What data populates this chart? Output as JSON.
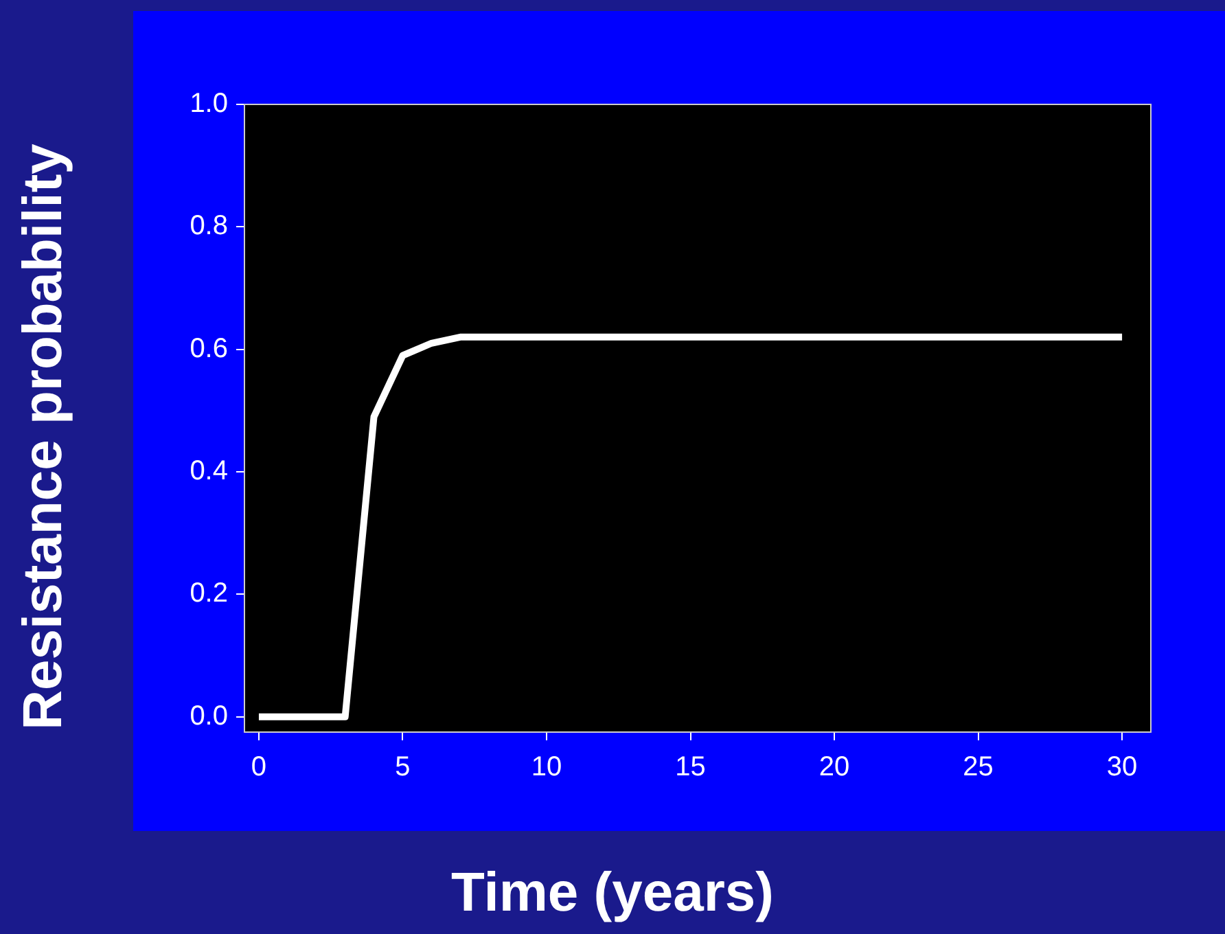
{
  "chart_data": {
    "type": "line",
    "xlabel": "Time (years)",
    "ylabel": "Resistance probability",
    "x": [
      0,
      1,
      2,
      3,
      4,
      5,
      6,
      7,
      8,
      9,
      10,
      11,
      12,
      13,
      14,
      15,
      16,
      17,
      18,
      19,
      20,
      21,
      22,
      23,
      24,
      25,
      26,
      27,
      28,
      29,
      30
    ],
    "series": [
      {
        "color": "#ffffff",
        "values": [
          0,
          0,
          0,
          0,
          0.49,
          0.59,
          0.61,
          0.62,
          0.62,
          0.62,
          0.62,
          0.62,
          0.62,
          0.62,
          0.62,
          0.62,
          0.62,
          0.62,
          0.62,
          0.62,
          0.62,
          0.62,
          0.62,
          0.62,
          0.62,
          0.62,
          0.62,
          0.62,
          0.62,
          0.62,
          0.62
        ]
      }
    ],
    "xlim": [
      -0.5,
      31
    ],
    "xticks": [
      0,
      5,
      10,
      15,
      20,
      25,
      30
    ],
    "ylim": [
      -0.025,
      1.0
    ],
    "yticks": [
      {
        "value": 0,
        "label": "0.0"
      },
      {
        "value": 0.2,
        "label": "0.2"
      },
      {
        "value": 0.4,
        "label": "0.4"
      },
      {
        "value": 0.6,
        "label": "0.6"
      },
      {
        "value": 0.8,
        "label": "0.8"
      },
      {
        "value": 1.0,
        "label": "1.0"
      }
    ],
    "grid": false,
    "legend": false,
    "marker": "none",
    "line_style": "solid"
  }
}
